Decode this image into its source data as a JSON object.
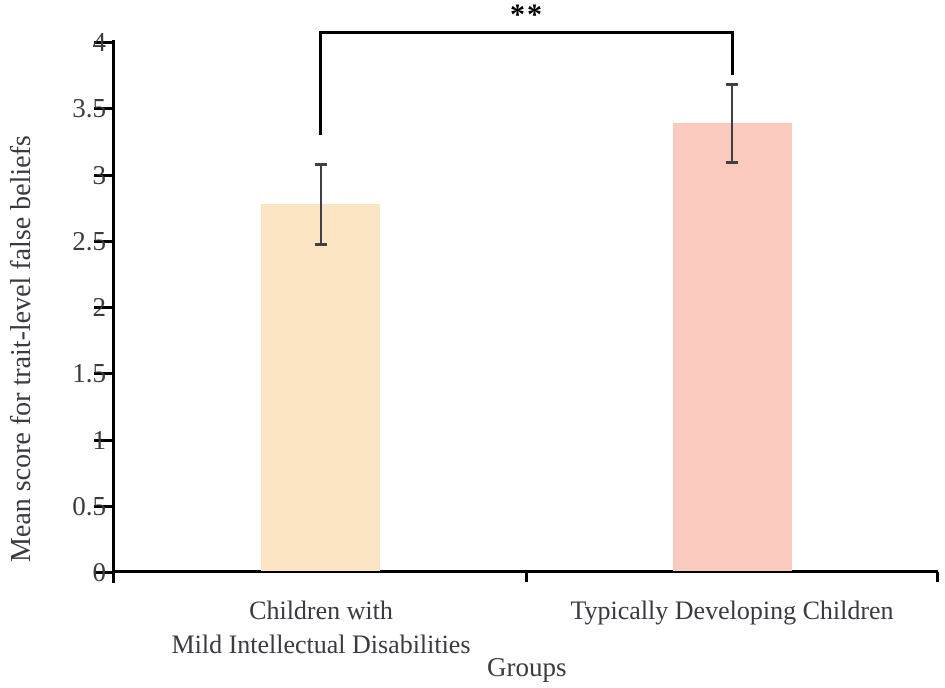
{
  "chart_data": {
    "type": "bar",
    "title": "",
    "xlabel": "Groups",
    "ylabel": "Mean score for trait-level false beliefs",
    "categories": [
      "Children with\nMild Intellectual Disabilities",
      "Typically Developing Children"
    ],
    "categories_display": [
      {
        "lines": [
          "Children with",
          "Mild Intellectual Disabilities"
        ]
      },
      {
        "lines": [
          "Typically Developing Children"
        ]
      }
    ],
    "values": [
      2.78,
      3.39
    ],
    "error_bars": [
      0.31,
      0.3
    ],
    "bar_colors": [
      "#fce5c5",
      "#fbcabe"
    ],
    "ylim": [
      0,
      4
    ],
    "yticks": [
      {
        "value": 4,
        "label": "4"
      },
      {
        "value": 3.5,
        "label": "3.5"
      },
      {
        "value": 3,
        "label": "3"
      },
      {
        "value": 2.5,
        "label": "2.5"
      },
      {
        "value": 2,
        "label": "2"
      },
      {
        "value": 1.5,
        "label": "1.5"
      },
      {
        "value": 1,
        "label": "1"
      },
      {
        "value": 0.5,
        "label": "0.5"
      },
      {
        "value": 0,
        "label": "0"
      }
    ],
    "grid": false,
    "legend": "none",
    "significance": {
      "label": "**",
      "between": [
        0,
        1
      ]
    },
    "axis_color": "#000000",
    "error_bar_color": "#3f3f44",
    "text_color": "#3a3a42"
  }
}
